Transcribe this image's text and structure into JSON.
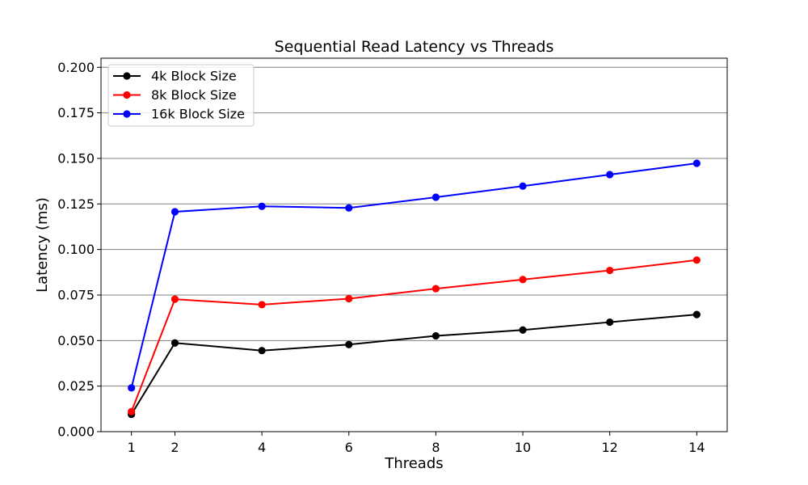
{
  "chart_data": {
    "type": "line",
    "title": "Sequential Read Latency vs Threads",
    "xlabel": "Threads",
    "ylabel": "Latency (ms)",
    "x": [
      1,
      2,
      4,
      6,
      8,
      10,
      12,
      14
    ],
    "xticks": [
      "1",
      "2",
      "4",
      "6",
      "8",
      "10",
      "12",
      "14"
    ],
    "xlim": [
      0.3,
      14.7
    ],
    "ylim": [
      0,
      0.205
    ],
    "yticks": [
      "0.000",
      "0.025",
      "0.050",
      "0.075",
      "0.100",
      "0.125",
      "0.150",
      "0.175",
      "0.200"
    ],
    "grid": "horizontal",
    "legend_position": "top-left",
    "series": [
      {
        "name": "4k Block Size",
        "color": "#000000",
        "values": [
          0.0095,
          0.0487,
          0.0445,
          0.0478,
          0.0526,
          0.0558,
          0.0601,
          0.0643
        ]
      },
      {
        "name": "8k Block Size",
        "color": "#ff0000",
        "values": [
          0.011,
          0.0727,
          0.0697,
          0.073,
          0.0785,
          0.0835,
          0.0885,
          0.0942
        ]
      },
      {
        "name": "16k Block Size",
        "color": "#0000ff",
        "values": [
          0.024,
          0.1207,
          0.1237,
          0.1228,
          0.1287,
          0.1348,
          0.1411,
          0.1473
        ]
      }
    ]
  }
}
